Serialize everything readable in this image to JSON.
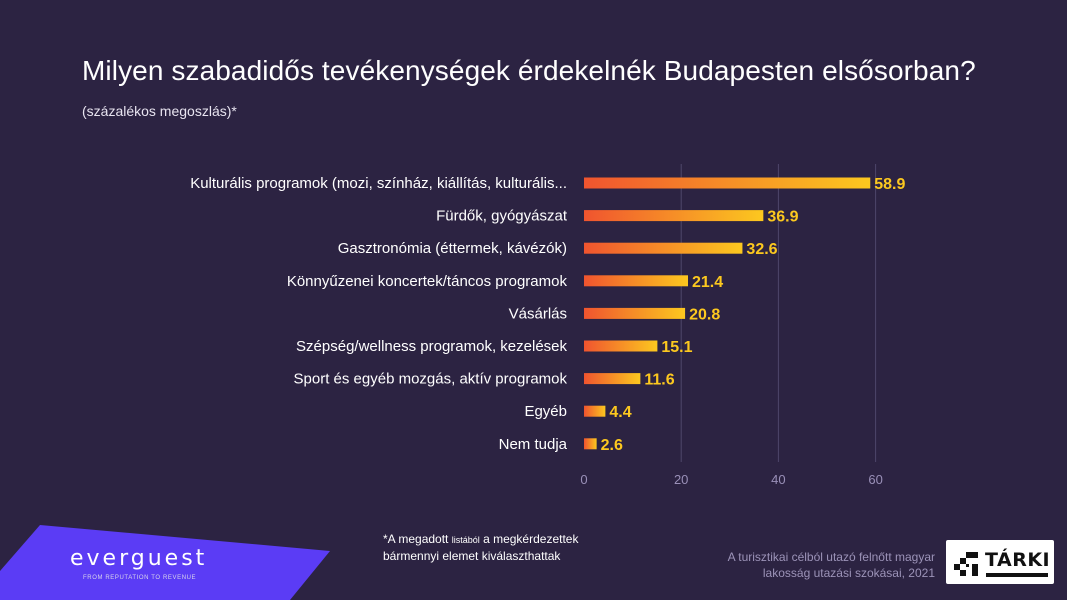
{
  "title": "Milyen szabadidős tevékenységek érdekelnék Budapesten elsősorban?",
  "subtitle": "(százalékos megoszlás)*",
  "chart_data": {
    "type": "bar",
    "orientation": "horizontal",
    "categories": [
      "Kulturális programok (mozi, színház, kiállítás, kulturális...",
      "Fürdők, gyógyászat",
      "Gasztronómia (éttermek, kávézók)",
      "Könnyűzenei koncertek/táncos programok",
      "Vásárlás",
      "Szépség/wellness programok, kezelések",
      "Sport és egyéb mozgás, aktív programok",
      "Egyéb",
      "Nem tudja"
    ],
    "values": [
      58.9,
      36.9,
      32.6,
      21.4,
      20.8,
      15.1,
      11.6,
      4.4,
      2.6
    ],
    "value_labels": [
      "58.9",
      "36.9",
      "32.6",
      "21.4",
      "20.8",
      "15.1",
      "11.6",
      "4.4",
      "2.6"
    ],
    "xlim": [
      0,
      60
    ],
    "xticks": [
      0,
      20,
      40,
      60
    ],
    "xtick_labels": [
      "0",
      "20",
      "40",
      "60"
    ],
    "grid": "vertical",
    "colors": {
      "bar_start": "#f0542f",
      "bar_end": "#fcc81f",
      "value_label": "#fcc81f",
      "grid": "#4e466a",
      "tick_label": "#9a90b8",
      "category_label": "#ffffff"
    }
  },
  "footnote": {
    "part1": "*A megadott ",
    "small": "listából",
    "part2": "  a megkérdezettek",
    "line2": "bármennyi elemet kiválaszthattak"
  },
  "source": {
    "line1": "A turisztikai célból utazó felnőtt magyar",
    "line2": "lakosság utazási szokásai, 2021"
  },
  "brand": {
    "name": "everguest",
    "tagline": "FROM REPUTATION TO REVENUE",
    "color": "#5b3cf5"
  },
  "partner_logo": {
    "name": "TÁRKI"
  }
}
